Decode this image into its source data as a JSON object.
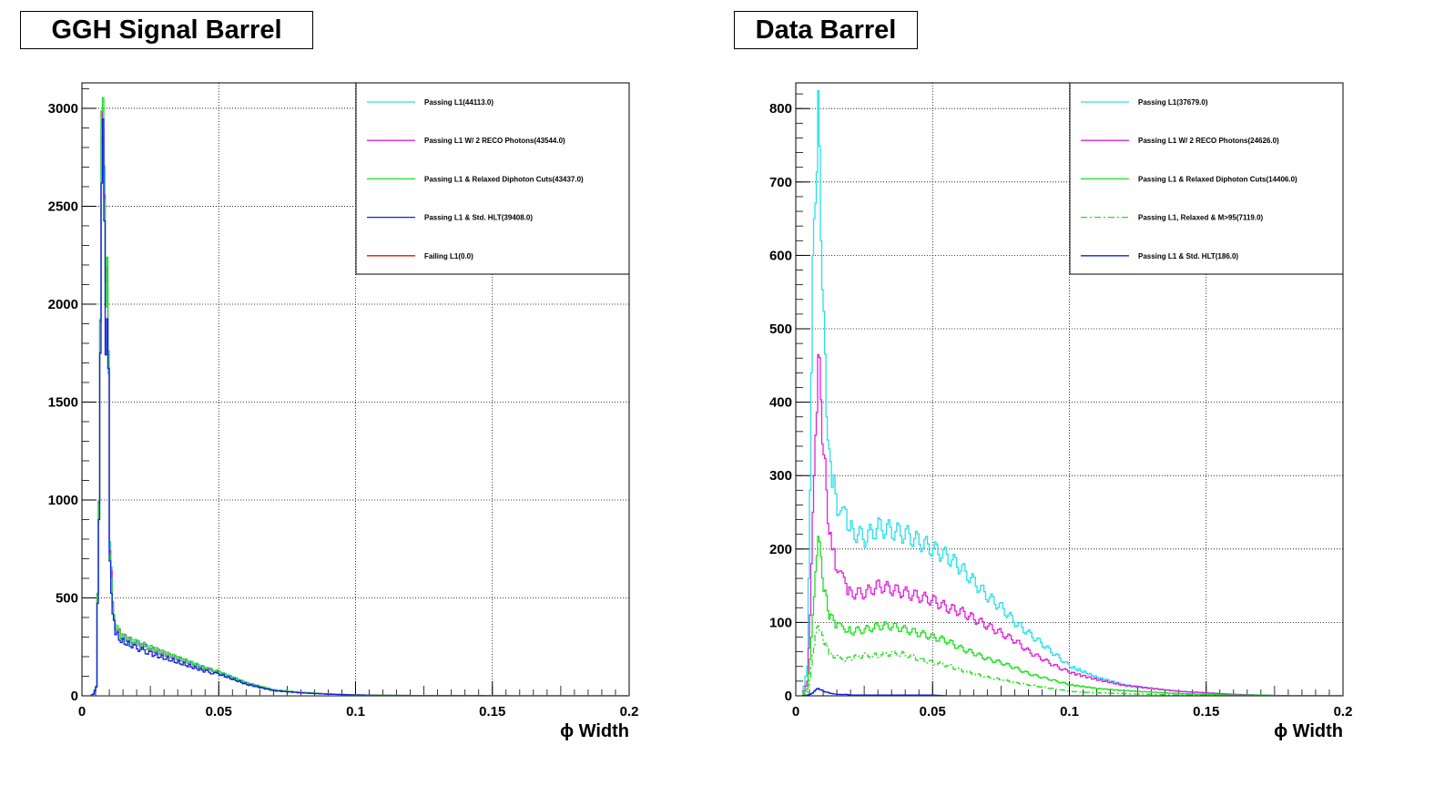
{
  "colors": {
    "cyan": "#27e0e8",
    "magenta": "#e020e0",
    "green": "#20e020",
    "blue": "#1020e0",
    "red": "#e01010"
  },
  "chart_data": [
    {
      "type": "line",
      "title": "GGH Signal Barrel",
      "xlabel": "ϕ Width",
      "ylabel": "",
      "xlim": [
        0,
        0.2
      ],
      "ylim": [
        0,
        3130
      ],
      "grid": true,
      "legend_position": "top-right",
      "x_ticks": [
        "0",
        "0.05",
        "0.1",
        "0.15",
        "0.2"
      ],
      "y_ticks": [
        "0",
        "500",
        "1000",
        "1500",
        "2000",
        "2500",
        "3000"
      ],
      "x": [
        0.003,
        0.004,
        0.005,
        0.006,
        0.007,
        0.0075,
        0.008,
        0.0085,
        0.009,
        0.0095,
        0.01,
        0.011,
        0.012,
        0.014,
        0.018,
        0.025,
        0.035,
        0.045,
        0.05,
        0.06,
        0.07,
        0.08,
        0.09,
        0.1,
        0.11,
        0.12,
        0.14,
        0.16,
        0.2
      ],
      "series": [
        {
          "name": "Passing L1(44113.0)",
          "color": "cyan",
          "dash": "",
          "values": [
            0,
            10,
            50,
            1000,
            2850,
            3000,
            2700,
            2050,
            2100,
            1750,
            780,
            460,
            360,
            310,
            280,
            240,
            190,
            140,
            120,
            65,
            30,
            18,
            10,
            5,
            3,
            2,
            1,
            0,
            0
          ]
        },
        {
          "name": "Passing L1 W/ 2 RECO Photons(43544.0)",
          "color": "magenta",
          "dash": "",
          "values": [
            0,
            10,
            48,
            990,
            2840,
            2990,
            2690,
            2040,
            2090,
            1740,
            775,
            455,
            355,
            305,
            278,
            238,
            188,
            138,
            118,
            64,
            29,
            17,
            9,
            5,
            3,
            2,
            1,
            0,
            0
          ]
        },
        {
          "name": "Passing L1 & Relaxed Diphoton Cuts(43437.0)",
          "color": "green",
          "dash": "",
          "values": [
            0,
            10,
            48,
            985,
            2830,
            2980,
            2680,
            2030,
            2120,
            1730,
            770,
            455,
            360,
            310,
            280,
            245,
            195,
            140,
            122,
            66,
            30,
            17,
            9,
            5,
            3,
            2,
            1,
            0,
            0
          ]
        },
        {
          "name": "Passing L1 & Std. HLT(39408.0)",
          "color": "blue",
          "dash": "",
          "values": [
            0,
            9,
            44,
            900,
            2600,
            2780,
            2450,
            1850,
            1900,
            1580,
            700,
            410,
            320,
            280,
            255,
            215,
            170,
            125,
            110,
            58,
            26,
            15,
            8,
            4,
            2,
            1,
            1,
            0,
            0
          ]
        },
        {
          "name": "Failing L1(0.0)",
          "color": "red",
          "dash": "",
          "values": [
            0,
            0,
            0,
            0,
            0,
            0,
            0,
            0,
            0,
            0,
            0,
            0,
            0,
            0,
            0,
            0,
            0,
            0,
            0,
            0,
            0,
            0,
            0,
            0,
            0,
            0,
            0,
            0,
            0
          ]
        }
      ]
    },
    {
      "type": "line",
      "title": "Data Barrel",
      "xlabel": "ϕ Width",
      "ylabel": "",
      "xlim": [
        0,
        0.2
      ],
      "ylim": [
        0,
        835
      ],
      "grid": true,
      "legend_position": "top-right",
      "x_ticks": [
        "0",
        "0.05",
        "0.1",
        "0.15",
        "0.2"
      ],
      "y_ticks": [
        "0",
        "100",
        "200",
        "300",
        "400",
        "500",
        "600",
        "700",
        "800"
      ],
      "x": [
        0.002,
        0.004,
        0.005,
        0.006,
        0.007,
        0.008,
        0.009,
        0.01,
        0.011,
        0.012,
        0.013,
        0.015,
        0.018,
        0.02,
        0.025,
        0.03,
        0.035,
        0.04,
        0.045,
        0.05,
        0.055,
        0.06,
        0.065,
        0.07,
        0.075,
        0.08,
        0.085,
        0.09,
        0.095,
        0.1,
        0.11,
        0.12,
        0.13,
        0.14,
        0.15,
        0.16,
        0.17,
        0.18,
        0.2
      ],
      "series": [
        {
          "name": "Passing L1(37679.0)",
          "color": "cyan",
          "dash": "",
          "values": [
            0,
            40,
            280,
            600,
            700,
            790,
            650,
            500,
            400,
            320,
            300,
            260,
            240,
            225,
            215,
            230,
            225,
            220,
            210,
            200,
            190,
            175,
            155,
            135,
            120,
            100,
            85,
            70,
            55,
            40,
            25,
            15,
            10,
            6,
            4,
            2,
            1,
            0,
            0
          ]
        },
        {
          "name": "Passing L1 W/ 2 RECO Photons(24626.0)",
          "color": "magenta",
          "dash": "",
          "values": [
            0,
            20,
            110,
            250,
            350,
            470,
            400,
            330,
            280,
            220,
            200,
            170,
            150,
            140,
            140,
            150,
            145,
            140,
            135,
            130,
            120,
            115,
            105,
            95,
            85,
            75,
            60,
            50,
            40,
            32,
            22,
            14,
            10,
            6,
            4,
            2,
            1,
            0,
            0
          ]
        },
        {
          "name": "Passing L1 & Relaxed Diphoton Cuts(14406.0)",
          "color": "green",
          "dash": "",
          "values": [
            0,
            10,
            50,
            110,
            160,
            230,
            180,
            150,
            130,
            110,
            105,
            95,
            90,
            88,
            90,
            95,
            95,
            90,
            85,
            80,
            75,
            65,
            58,
            50,
            45,
            38,
            30,
            25,
            20,
            15,
            10,
            7,
            5,
            3,
            2,
            1,
            1,
            0,
            0
          ]
        },
        {
          "name": "Passing L1, Relaxed & M>95(7119.0)",
          "color": "green",
          "dash": "7,3,2,3",
          "values": [
            0,
            5,
            25,
            55,
            80,
            100,
            85,
            75,
            68,
            60,
            55,
            52,
            50,
            52,
            55,
            55,
            58,
            56,
            50,
            45,
            42,
            35,
            30,
            25,
            22,
            18,
            15,
            12,
            9,
            6,
            4,
            3,
            2,
            1,
            1,
            0,
            0,
            0,
            0
          ]
        },
        {
          "name": "Passing L1 & Std. HLT(186.0)",
          "color": "blue",
          "dash": "",
          "values": [
            0,
            1,
            2,
            4,
            8,
            10,
            8,
            6,
            5,
            4,
            3,
            2,
            2,
            1,
            1,
            1,
            1,
            1,
            1,
            1,
            0,
            0,
            0,
            0,
            0,
            0,
            0,
            0,
            0,
            0,
            0,
            0,
            0,
            0,
            0,
            0,
            0,
            0,
            0
          ]
        }
      ]
    }
  ]
}
